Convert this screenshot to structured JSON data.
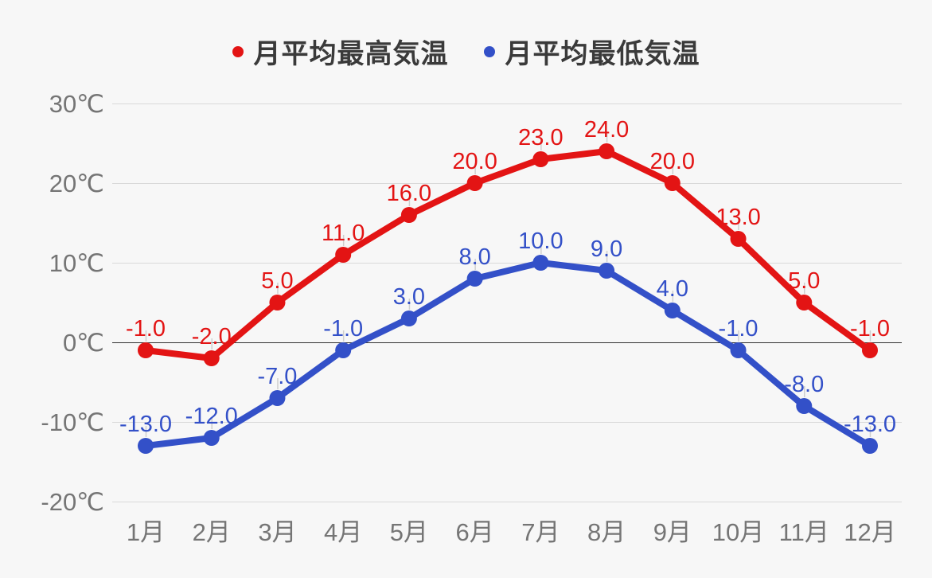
{
  "chart_data": {
    "type": "line",
    "categories": [
      "1月",
      "2月",
      "3月",
      "4月",
      "5月",
      "6月",
      "7月",
      "8月",
      "9月",
      "10月",
      "11月",
      "12月"
    ],
    "series": [
      {
        "name": "月平均最高気温",
        "color": "#e31414",
        "values": [
          -1.0,
          -2.0,
          5.0,
          11.0,
          16.0,
          20.0,
          23.0,
          24.0,
          20.0,
          13.0,
          5.0,
          -1.0
        ]
      },
      {
        "name": "月平均最低気温",
        "color": "#3350c8",
        "values": [
          -13.0,
          -12.0,
          -7.0,
          -1.0,
          3.0,
          8.0,
          10.0,
          9.0,
          4.0,
          -1.0,
          -8.0,
          -13.0
        ]
      }
    ],
    "title": "",
    "xlabel": "",
    "ylabel": "",
    "y_unit": "℃",
    "yticks": [
      30,
      20,
      10,
      0,
      -10,
      -20
    ],
    "ylim": [
      -20,
      30
    ],
    "grid": true,
    "legend_position": "top",
    "point_labels": true,
    "point_label_decimals": 1
  },
  "colors": {
    "background": "#f7f7f7",
    "grid_line": "#d9d9d9",
    "zero_line": "#333333",
    "axis_text": "#757575",
    "legend_text": "#3a3a3a",
    "label_leader": "#cfcfcf"
  }
}
